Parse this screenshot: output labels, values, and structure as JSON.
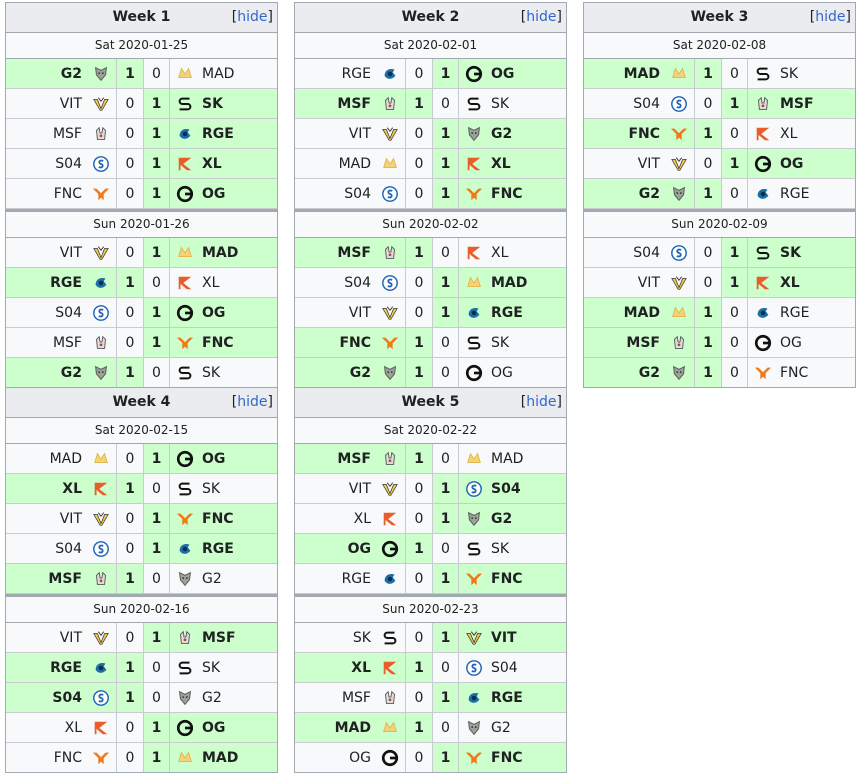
{
  "hide_label": "hide",
  "weeks": [
    {
      "title": "Week 1",
      "days": [
        {
          "date": "Sat 2020-01-25",
          "matches": [
            {
              "a": "G2",
              "sa": "1",
              "sb": "0",
              "b": "MAD",
              "winner": "a"
            },
            {
              "a": "VIT",
              "sa": "0",
              "sb": "1",
              "b": "SK",
              "winner": "b"
            },
            {
              "a": "MSF",
              "sa": "0",
              "sb": "1",
              "b": "RGE",
              "winner": "b"
            },
            {
              "a": "S04",
              "sa": "0",
              "sb": "1",
              "b": "XL",
              "winner": "b"
            },
            {
              "a": "FNC",
              "sa": "0",
              "sb": "1",
              "b": "OG",
              "winner": "b"
            }
          ]
        },
        {
          "date": "Sun 2020-01-26",
          "matches": [
            {
              "a": "VIT",
              "sa": "0",
              "sb": "1",
              "b": "MAD",
              "winner": "b"
            },
            {
              "a": "RGE",
              "sa": "1",
              "sb": "0",
              "b": "XL",
              "winner": "a"
            },
            {
              "a": "S04",
              "sa": "0",
              "sb": "1",
              "b": "OG",
              "winner": "b"
            },
            {
              "a": "MSF",
              "sa": "0",
              "sb": "1",
              "b": "FNC",
              "winner": "b"
            },
            {
              "a": "G2",
              "sa": "1",
              "sb": "0",
              "b": "SK",
              "winner": "a"
            }
          ]
        }
      ]
    },
    {
      "title": "Week 2",
      "days": [
        {
          "date": "Sat 2020-02-01",
          "matches": [
            {
              "a": "RGE",
              "sa": "0",
              "sb": "1",
              "b": "OG",
              "winner": "b"
            },
            {
              "a": "MSF",
              "sa": "1",
              "sb": "0",
              "b": "SK",
              "winner": "a"
            },
            {
              "a": "VIT",
              "sa": "0",
              "sb": "1",
              "b": "G2",
              "winner": "b"
            },
            {
              "a": "MAD",
              "sa": "0",
              "sb": "1",
              "b": "XL",
              "winner": "b"
            },
            {
              "a": "S04",
              "sa": "0",
              "sb": "1",
              "b": "FNC",
              "winner": "b"
            }
          ]
        },
        {
          "date": "Sun 2020-02-02",
          "matches": [
            {
              "a": "MSF",
              "sa": "1",
              "sb": "0",
              "b": "XL",
              "winner": "a"
            },
            {
              "a": "S04",
              "sa": "0",
              "sb": "1",
              "b": "MAD",
              "winner": "b"
            },
            {
              "a": "VIT",
              "sa": "0",
              "sb": "1",
              "b": "RGE",
              "winner": "b"
            },
            {
              "a": "FNC",
              "sa": "1",
              "sb": "0",
              "b": "SK",
              "winner": "a"
            },
            {
              "a": "G2",
              "sa": "1",
              "sb": "0",
              "b": "OG",
              "winner": "a"
            }
          ]
        }
      ]
    },
    {
      "title": "Week 3",
      "days": [
        {
          "date": "Sat 2020-02-08",
          "matches": [
            {
              "a": "MAD",
              "sa": "1",
              "sb": "0",
              "b": "SK",
              "winner": "a"
            },
            {
              "a": "S04",
              "sa": "0",
              "sb": "1",
              "b": "MSF",
              "winner": "b"
            },
            {
              "a": "FNC",
              "sa": "1",
              "sb": "0",
              "b": "XL",
              "winner": "a"
            },
            {
              "a": "VIT",
              "sa": "0",
              "sb": "1",
              "b": "OG",
              "winner": "b"
            },
            {
              "a": "G2",
              "sa": "1",
              "sb": "0",
              "b": "RGE",
              "winner": "a"
            }
          ]
        },
        {
          "date": "Sun 2020-02-09",
          "matches": [
            {
              "a": "S04",
              "sa": "0",
              "sb": "1",
              "b": "SK",
              "winner": "b"
            },
            {
              "a": "VIT",
              "sa": "0",
              "sb": "1",
              "b": "XL",
              "winner": "b"
            },
            {
              "a": "MAD",
              "sa": "1",
              "sb": "0",
              "b": "RGE",
              "winner": "a"
            },
            {
              "a": "MSF",
              "sa": "1",
              "sb": "0",
              "b": "OG",
              "winner": "a"
            },
            {
              "a": "G2",
              "sa": "1",
              "sb": "0",
              "b": "FNC",
              "winner": "a"
            }
          ]
        }
      ]
    },
    {
      "title": "Week 4",
      "days": [
        {
          "date": "Sat 2020-02-15",
          "matches": [
            {
              "a": "MAD",
              "sa": "0",
              "sb": "1",
              "b": "OG",
              "winner": "b"
            },
            {
              "a": "XL",
              "sa": "1",
              "sb": "0",
              "b": "SK",
              "winner": "a"
            },
            {
              "a": "VIT",
              "sa": "0",
              "sb": "1",
              "b": "FNC",
              "winner": "b"
            },
            {
              "a": "S04",
              "sa": "0",
              "sb": "1",
              "b": "RGE",
              "winner": "b"
            },
            {
              "a": "MSF",
              "sa": "1",
              "sb": "0",
              "b": "G2",
              "winner": "a"
            }
          ]
        },
        {
          "date": "Sun 2020-02-16",
          "matches": [
            {
              "a": "VIT",
              "sa": "0",
              "sb": "1",
              "b": "MSF",
              "winner": "b"
            },
            {
              "a": "RGE",
              "sa": "1",
              "sb": "0",
              "b": "SK",
              "winner": "a"
            },
            {
              "a": "S04",
              "sa": "1",
              "sb": "0",
              "b": "G2",
              "winner": "a"
            },
            {
              "a": "XL",
              "sa": "0",
              "sb": "1",
              "b": "OG",
              "winner": "b"
            },
            {
              "a": "FNC",
              "sa": "0",
              "sb": "1",
              "b": "MAD",
              "winner": "b"
            }
          ]
        }
      ]
    },
    {
      "title": "Week 5",
      "days": [
        {
          "date": "Sat 2020-02-22",
          "matches": [
            {
              "a": "MSF",
              "sa": "1",
              "sb": "0",
              "b": "MAD",
              "winner": "a"
            },
            {
              "a": "VIT",
              "sa": "0",
              "sb": "1",
              "b": "S04",
              "winner": "b"
            },
            {
              "a": "XL",
              "sa": "0",
              "sb": "1",
              "b": "G2",
              "winner": "b"
            },
            {
              "a": "OG",
              "sa": "1",
              "sb": "0",
              "b": "SK",
              "winner": "a"
            },
            {
              "a": "RGE",
              "sa": "0",
              "sb": "1",
              "b": "FNC",
              "winner": "b"
            }
          ]
        },
        {
          "date": "Sun 2020-02-23",
          "matches": [
            {
              "a": "SK",
              "sa": "0",
              "sb": "1",
              "b": "VIT",
              "winner": "b"
            },
            {
              "a": "XL",
              "sa": "1",
              "sb": "0",
              "b": "S04",
              "winner": "a"
            },
            {
              "a": "MSF",
              "sa": "0",
              "sb": "1",
              "b": "RGE",
              "winner": "b"
            },
            {
              "a": "MAD",
              "sa": "1",
              "sb": "0",
              "b": "G2",
              "winner": "a"
            },
            {
              "a": "OG",
              "sa": "0",
              "sb": "1",
              "b": "FNC",
              "winner": "b"
            }
          ]
        }
      ]
    }
  ],
  "colors": {
    "win_bg": "#ccffcc",
    "link": "#3366cc",
    "border": "#a2a9b1",
    "header_bg": "#eaecf0"
  }
}
